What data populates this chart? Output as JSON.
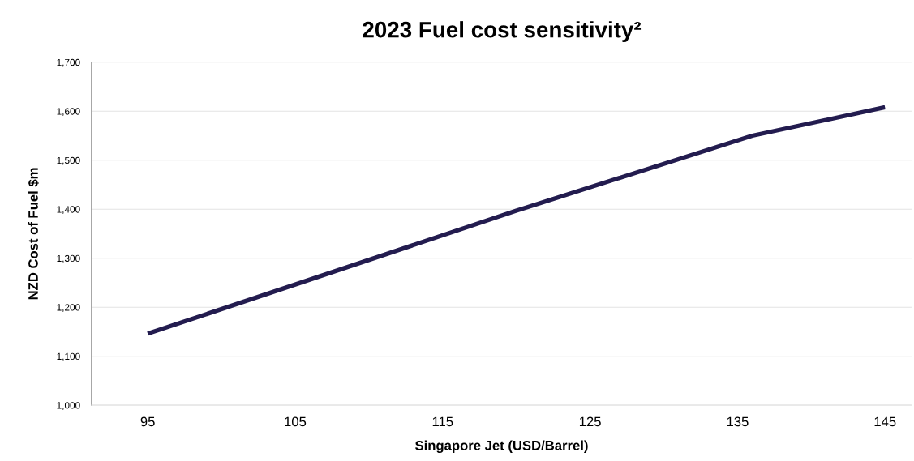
{
  "chart_data": {
    "type": "line",
    "title": "2023 Fuel cost sensitivity²",
    "xlabel": "Singapore Jet (USD/Barrel)",
    "ylabel": "NZD Cost of Fuel $m",
    "x": [
      95,
      120,
      136,
      145
    ],
    "series": [
      {
        "color": "#231c4f",
        "values": [
          1146,
          1397,
          1550,
          1608
        ]
      }
    ],
    "xlim": [
      91.2,
      146.8
    ],
    "xticks": [
      95,
      105,
      115,
      125,
      135,
      145
    ],
    "ylim": [
      1000,
      1700
    ],
    "yticks": [
      {
        "value": 1000,
        "label": "1,000"
      },
      {
        "value": 1100,
        "label": "1,100"
      },
      {
        "value": 1200,
        "label": "1,200"
      },
      {
        "value": 1300,
        "label": "1,300"
      },
      {
        "value": 1400,
        "label": "1,400"
      },
      {
        "value": 1500,
        "label": "1,500"
      },
      {
        "value": 1600,
        "label": "1,600"
      },
      {
        "value": 1700,
        "label": "1,700"
      }
    ],
    "grid": "y",
    "legend": false,
    "marker": "none",
    "line_style": "solid"
  }
}
